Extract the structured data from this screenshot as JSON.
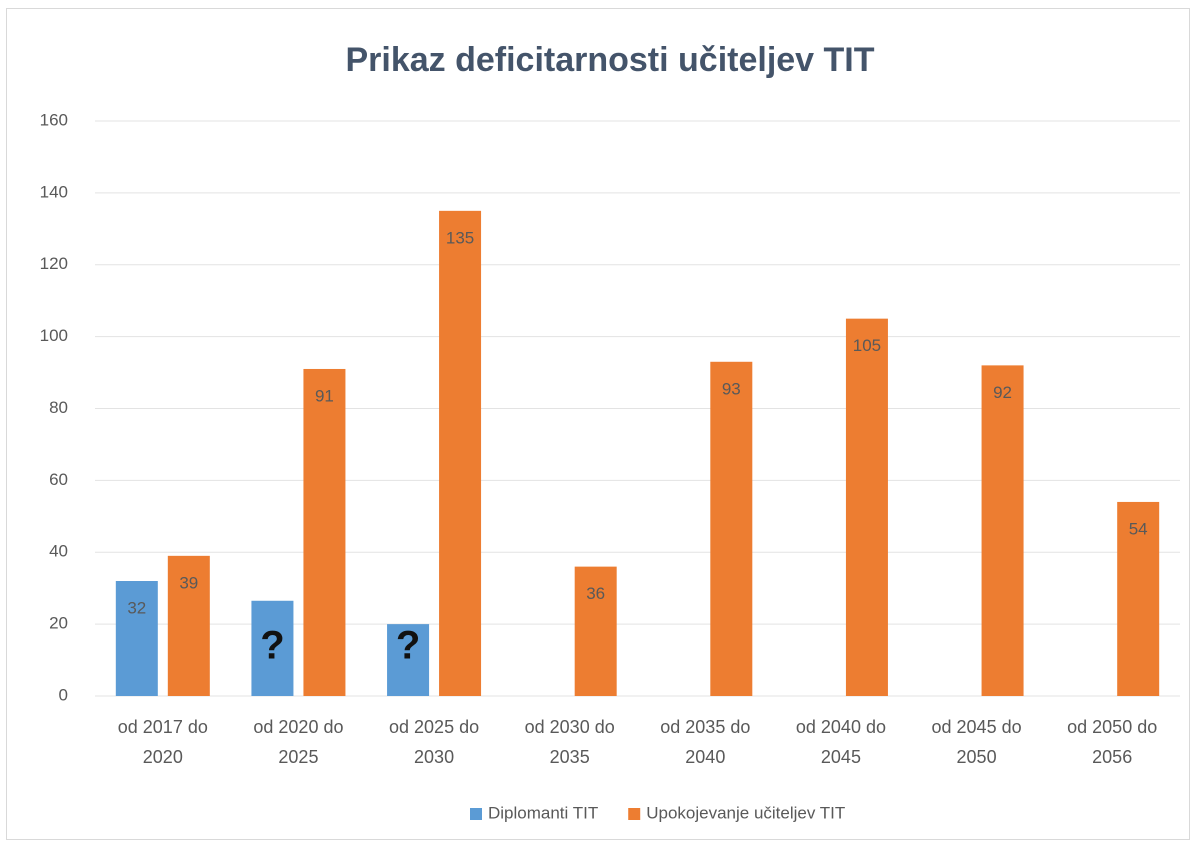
{
  "chart_data": {
    "type": "bar",
    "title": "Prikaz deficitarnosti učiteljev TIT",
    "categories": [
      "od 2017 do 2020",
      "od 2020 do 2025",
      "od 2025 do 2030",
      "od 2030 do 2035",
      "od 2035 do 2040",
      "od 2040 do 2045",
      "od 2045 do 2050",
      "od 2050 do 2056"
    ],
    "series": [
      {
        "name": "Diplomanti TIT",
        "color": "#5b9bd5",
        "values": [
          32,
          26.5,
          20,
          null,
          null,
          null,
          null,
          null
        ],
        "value_labels": [
          "32",
          "?",
          "?",
          null,
          null,
          null,
          null,
          null
        ]
      },
      {
        "name": "Upokojevanje učiteljev TIT",
        "color": "#ed7d31",
        "values": [
          39,
          91,
          135,
          36,
          93,
          105,
          92,
          54
        ]
      }
    ],
    "ylim": [
      0,
      160
    ],
    "yticks": [
      0,
      20,
      40,
      60,
      80,
      100,
      120,
      140,
      160
    ],
    "grid": true,
    "legend": "bottom"
  }
}
